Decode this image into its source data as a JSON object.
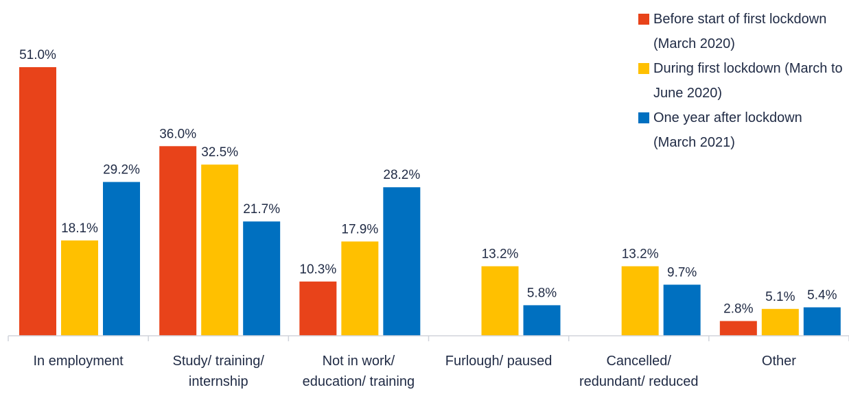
{
  "chart_data": {
    "type": "bar",
    "categories": [
      "In employment",
      "Study/ training/ internship",
      "Not in work/ education/ training",
      "Furlough/ paused",
      "Cancelled/ redundant/ reduced",
      "Other"
    ],
    "series": [
      {
        "name": "Before start of first lockdown (March 2020)",
        "color": "#e8431a",
        "values": [
          51.0,
          36.0,
          10.3,
          null,
          null,
          2.8
        ],
        "value_labels": [
          "51.0%",
          "36.0%",
          "10.3%",
          null,
          null,
          "2.8%"
        ]
      },
      {
        "name": "During first lockdown (March to June 2020)",
        "color": "#ffc000",
        "values": [
          18.1,
          32.5,
          17.9,
          13.2,
          13.2,
          5.1
        ],
        "value_labels": [
          "18.1%",
          "32.5%",
          "17.9%",
          "13.2%",
          "13.2%",
          "5.1%"
        ]
      },
      {
        "name": "One year after lockdown (March 2021)",
        "color": "#0070c0",
        "values": [
          29.2,
          21.7,
          28.2,
          5.8,
          9.7,
          5.4
        ],
        "value_labels": [
          "29.2%",
          "21.7%",
          "28.2%",
          "5.8%",
          "9.7%",
          "5.4%"
        ]
      }
    ],
    "legend": "top-right"
  }
}
